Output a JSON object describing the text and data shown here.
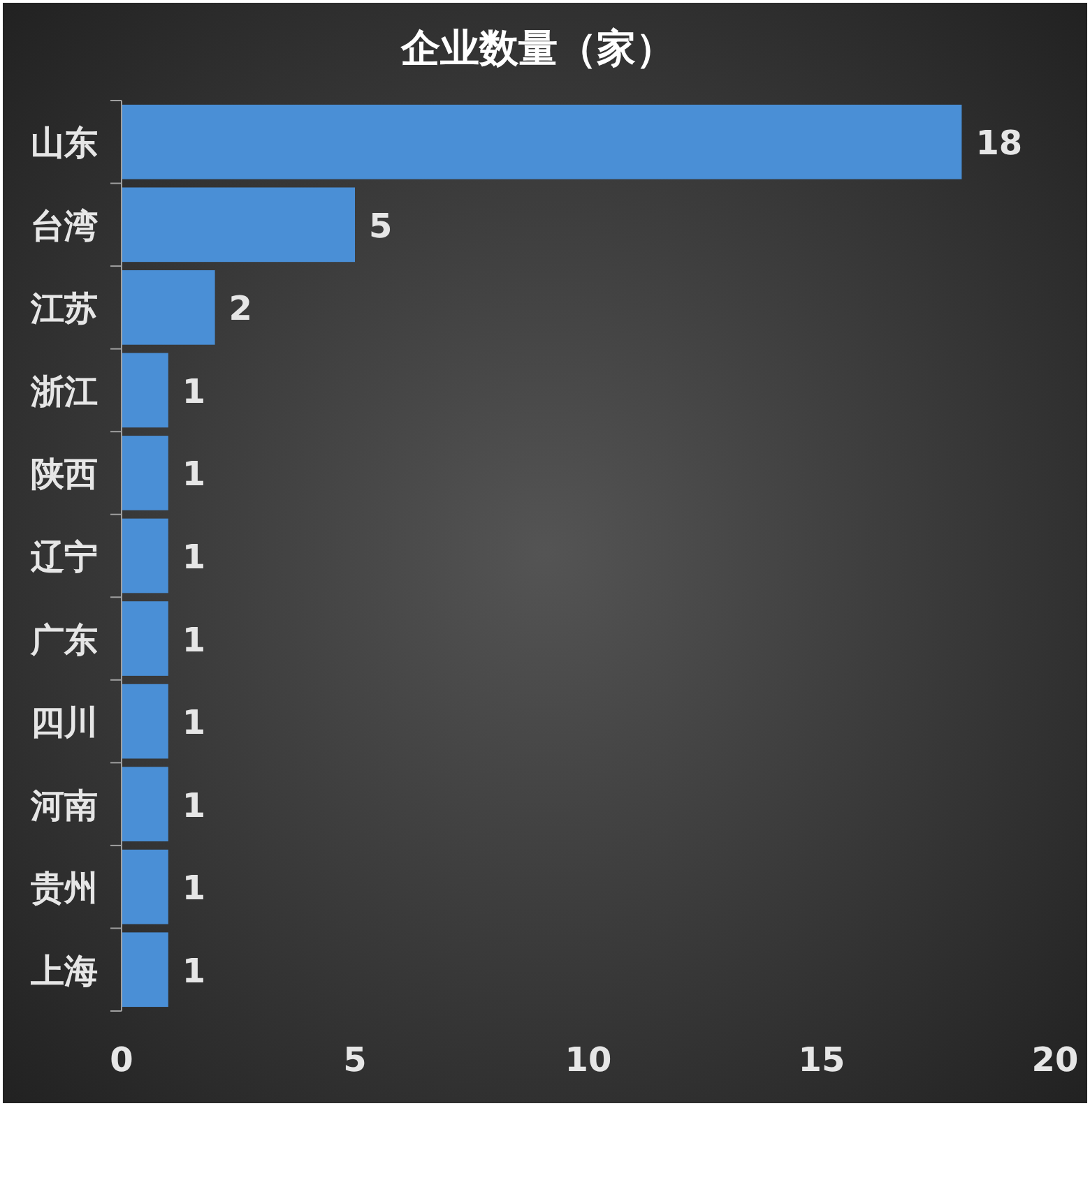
{
  "chart_data": {
    "type": "bar",
    "orientation": "horizontal",
    "title": "企业数量（家）",
    "categories": [
      "山东",
      "台湾",
      "江苏",
      "浙江",
      "陕西",
      "辽宁",
      "广东",
      "四川",
      "河南",
      "贵州",
      "上海"
    ],
    "values": [
      18,
      5,
      2,
      1,
      1,
      1,
      1,
      1,
      1,
      1,
      1
    ],
    "color": "#4a8fd6",
    "xlim": [
      0,
      20
    ],
    "xticks": [
      0,
      5,
      10,
      15,
      20
    ],
    "data_labels": true
  }
}
